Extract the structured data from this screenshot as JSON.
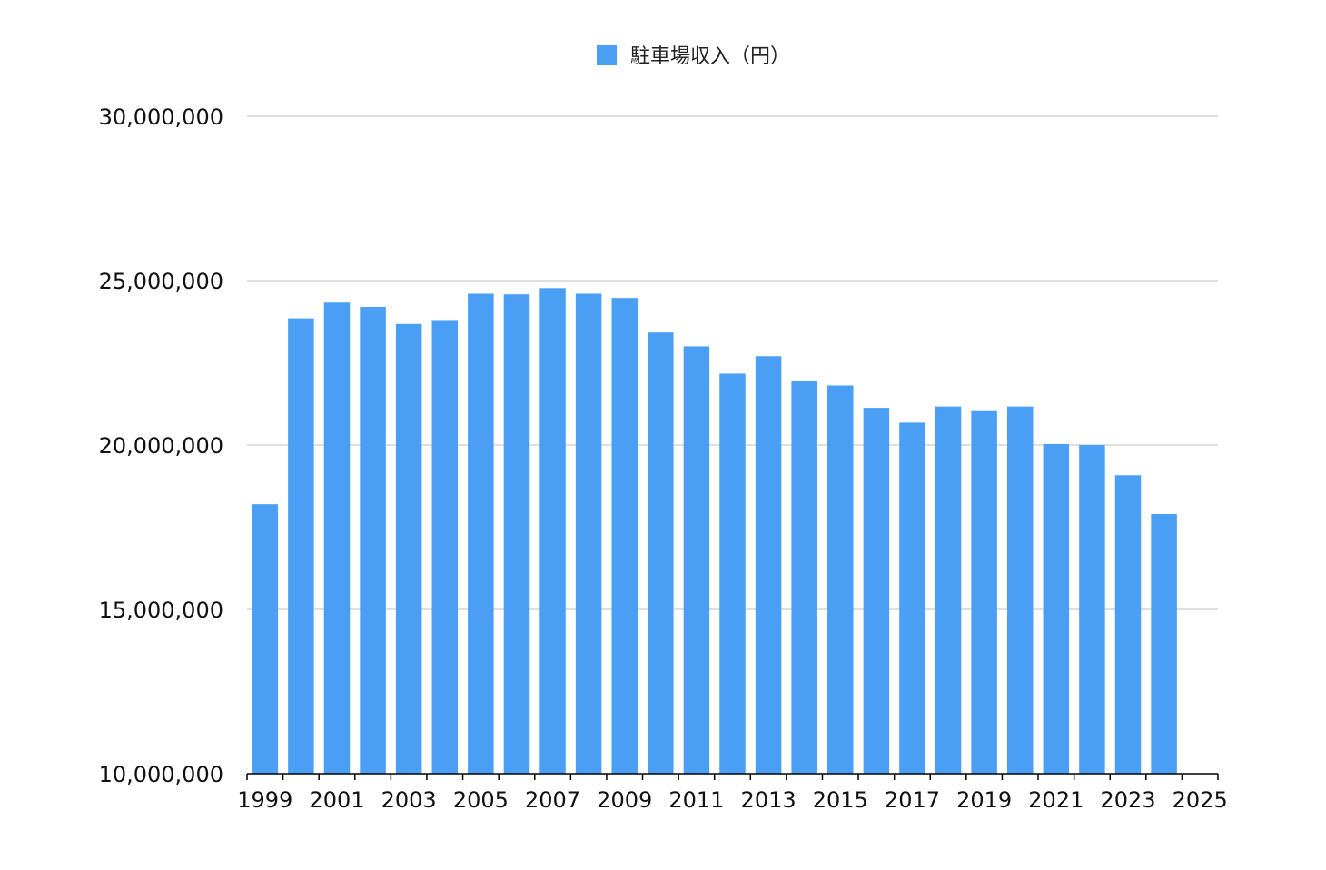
{
  "chart_data": {
    "type": "bar",
    "title": "",
    "xlabel": "",
    "ylabel": "",
    "series": [
      {
        "name": "駐車場収入（円）",
        "color": "#4a9ff5",
        "points": [
          {
            "x": 1999,
            "y": 18200000
          },
          {
            "x": 2000,
            "y": 23850000
          },
          {
            "x": 2001,
            "y": 24330000
          },
          {
            "x": 2002,
            "y": 24200000
          },
          {
            "x": 2003,
            "y": 23680000
          },
          {
            "x": 2004,
            "y": 23800000
          },
          {
            "x": 2005,
            "y": 24600000
          },
          {
            "x": 2006,
            "y": 24580000
          },
          {
            "x": 2007,
            "y": 24770000
          },
          {
            "x": 2008,
            "y": 24600000
          },
          {
            "x": 2009,
            "y": 24470000
          },
          {
            "x": 2010,
            "y": 23420000
          },
          {
            "x": 2011,
            "y": 23000000
          },
          {
            "x": 2012,
            "y": 22170000
          },
          {
            "x": 2013,
            "y": 22700000
          },
          {
            "x": 2014,
            "y": 21950000
          },
          {
            "x": 2015,
            "y": 21810000
          },
          {
            "x": 2016,
            "y": 21130000
          },
          {
            "x": 2017,
            "y": 20680000
          },
          {
            "x": 2018,
            "y": 21170000
          },
          {
            "x": 2019,
            "y": 21030000
          },
          {
            "x": 2020,
            "y": 21170000
          },
          {
            "x": 2021,
            "y": 20030000
          },
          {
            "x": 2022,
            "y": 20000000
          },
          {
            "x": 2023,
            "y": 19080000
          },
          {
            "x": 2024,
            "y": 17900000
          }
        ]
      }
    ],
    "ylim": [
      10000000,
      30000000
    ],
    "y_ticks": [
      "10,000,000",
      "15,000,000",
      "20,000,000",
      "25,000,000",
      "30,000,000"
    ],
    "y_tick_values": [
      10000000,
      15000000,
      20000000,
      25000000,
      30000000
    ],
    "xlim": [
      1998.5,
      2025.5
    ],
    "x_ticks": [
      "1999",
      "2001",
      "2003",
      "2005",
      "2007",
      "2009",
      "2011",
      "2013",
      "2015",
      "2017",
      "2019",
      "2021",
      "2023",
      "2025"
    ],
    "x_tick_values": [
      1999,
      2001,
      2003,
      2005,
      2007,
      2009,
      2011,
      2013,
      2015,
      2017,
      2019,
      2021,
      2023,
      2025
    ],
    "grid": true,
    "legend_position": "top-center",
    "gridline_color": "#bfbfbf",
    "axis_color": "#000000"
  }
}
